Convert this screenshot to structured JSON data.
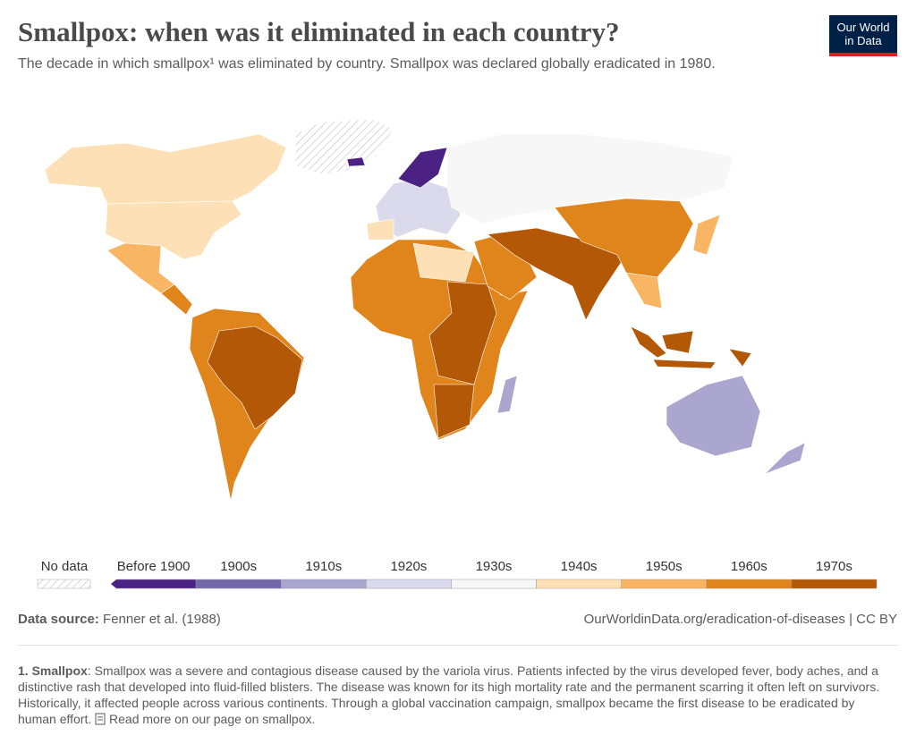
{
  "header": {
    "title": "Smallpox: when was it eliminated in each country?",
    "subtitle": "The decade in which smallpox¹ was eliminated by country. Smallpox was declared globally eradicated in 1980.",
    "logo": [
      "Our World",
      "in Data"
    ]
  },
  "legend": {
    "no_data": "No data",
    "bins": [
      {
        "label": "Before 1900",
        "color": "#4b2183"
      },
      {
        "label": "1900s",
        "color": "#7267a8"
      },
      {
        "label": "1910s",
        "color": "#aba6d0"
      },
      {
        "label": "1920s",
        "color": "#dbdaec"
      },
      {
        "label": "1930s",
        "color": "#f7f7f7"
      },
      {
        "label": "1940s",
        "color": "#fde0b5"
      },
      {
        "label": "1950s",
        "color": "#f8b563"
      },
      {
        "label": "1960s",
        "color": "#e0841c"
      },
      {
        "label": "1970s",
        "color": "#b35806"
      }
    ]
  },
  "footer": {
    "source_label": "Data source:",
    "source": "Fenner et al. (1988)",
    "url": "OurWorldinData.org/eradication-of-diseases | CC BY"
  },
  "note": {
    "heading": "1. Smallpox",
    "text": ": Smallpox was a severe and contagious disease caused by the variola virus. Patients infected by the virus developed fever, body aches, and a distinctive rash that developed into fluid-filled blisters. The disease was known for its high mortality rate and the permanent scarring it often left on survivors. Historically, it affected people across various continents. Through a global vaccination campaign, smallpox became the first disease to be eradicated by human effort.",
    "link": "Read more on our page on smallpox."
  }
}
